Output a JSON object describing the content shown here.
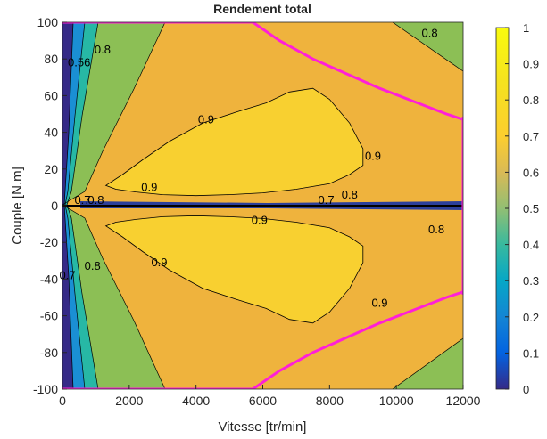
{
  "chart_data": {
    "type": "contour",
    "title": "Rendement total",
    "xlabel": "Vitesse [tr/min]",
    "ylabel": "Couple [N.m]",
    "xlim": [
      0,
      12000
    ],
    "ylim": [
      -100,
      100
    ],
    "xticks": [
      "0",
      "2000",
      "4000",
      "6000",
      "8000",
      "10000",
      "12000"
    ],
    "yticks": [
      "100",
      "80",
      "60",
      "40",
      "20",
      "0",
      "-20",
      "-40",
      "-60",
      "-80",
      "-100"
    ],
    "colorbar": {
      "range": [
        0,
        1
      ],
      "ticks": [
        "1",
        "0.9",
        "0.8",
        "0.7",
        "0.6",
        "0.5",
        "0.4",
        "0.3",
        "0.2",
        "0.1",
        "0"
      ],
      "colormap": "parula"
    },
    "boundary_color": "#ff1fd8",
    "max_torque_envelope": {
      "speed": [
        0,
        5700,
        6500,
        7500,
        8500,
        9500,
        10500,
        11500,
        12000
      ],
      "torque": [
        100,
        100,
        90,
        80,
        72,
        64,
        57,
        50,
        47
      ]
    },
    "regions": [
      {
        "level": "0.9",
        "color": "#f8d030",
        "speed": [
          1300,
          1800,
          2400,
          3200,
          4200,
          5200,
          6100,
          6800,
          7500,
          8000,
          8600,
          9000,
          9000,
          8600,
          8000,
          7000,
          6000,
          5000,
          4000,
          3000,
          2200,
          1600,
          1300
        ],
        "torque": [
          11,
          17,
          25,
          35,
          45,
          51,
          56,
          62,
          64,
          58,
          45,
          31,
          22,
          17,
          12,
          9,
          7,
          6,
          5.5,
          6,
          7.5,
          9,
          11
        ]
      },
      {
        "level": "0.9",
        "color": "#f8d030",
        "speed": [
          1300,
          1800,
          2400,
          3200,
          4200,
          5200,
          6100,
          6800,
          7500,
          8000,
          8600,
          9000,
          9000,
          8600,
          8000,
          7000,
          6000,
          5000,
          4000,
          3000,
          2200,
          1600,
          1300
        ],
        "torque": [
          -11,
          -17,
          -25,
          -35,
          -45,
          -51,
          -56,
          -62,
          -64,
          -58,
          -45,
          -31,
          -22,
          -17,
          -12,
          -9,
          -7,
          -6,
          -5.5,
          -6,
          -7.5,
          -9,
          -11
        ]
      }
    ],
    "contour_labels": [
      {
        "text": "0.8",
        "speed": 1200,
        "torque": 83
      },
      {
        "text": "0.8",
        "speed": 11000,
        "torque": 92
      },
      {
        "text": "0.9",
        "speed": 4300,
        "torque": 45
      },
      {
        "text": "0.9",
        "speed": 9300,
        "torque": 25
      },
      {
        "text": "0.9",
        "speed": 2600,
        "torque": 8
      },
      {
        "text": "0.7",
        "speed": 600,
        "torque": 1
      },
      {
        "text": "0.8",
        "speed": 1000,
        "torque": 1
      },
      {
        "text": "0.7",
        "speed": 7900,
        "torque": 1
      },
      {
        "text": "0.8",
        "speed": 8600,
        "torque": 4
      },
      {
        "text": "0.9",
        "speed": 5900,
        "torque": -10
      },
      {
        "text": "0.8",
        "speed": 11200,
        "torque": -15
      },
      {
        "text": "0.9",
        "speed": 2900,
        "torque": -33
      },
      {
        "text": "0.9",
        "speed": 9500,
        "torque": -55
      },
      {
        "text": "0.8",
        "speed": 900,
        "torque": -35
      },
      {
        "text": "0.7",
        "speed": 150,
        "torque": -40
      },
      {
        "text": "0.56",
        "speed": 500,
        "torque": 76
      }
    ]
  }
}
